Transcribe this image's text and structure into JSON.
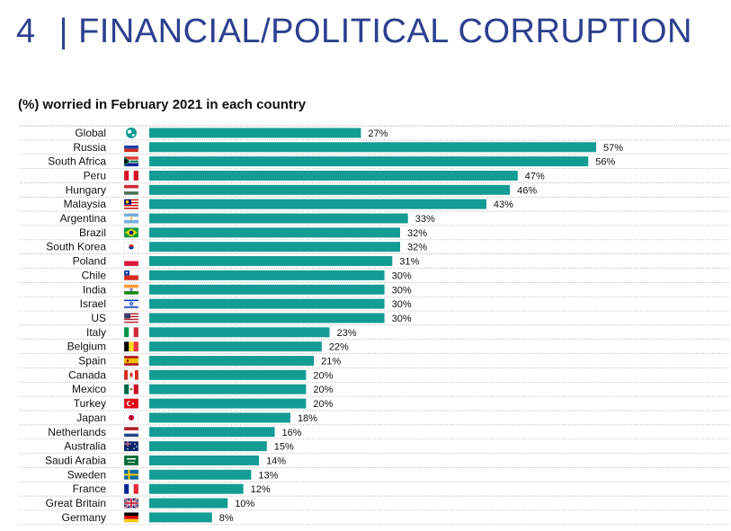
{
  "header": {
    "number": "4",
    "title": "| FINANCIAL/POLITICAL CORRUPTION"
  },
  "chart_data": {
    "type": "bar",
    "orientation": "horizontal",
    "title": "(%) worried in February 2021 in each country",
    "bar_color": "#139c94",
    "value_suffix": "%",
    "xlim": [
      0,
      60
    ],
    "categories": [
      "Global",
      "Russia",
      "South Africa",
      "Peru",
      "Hungary",
      "Malaysia",
      "Argentina",
      "Brazil",
      "South Korea",
      "Poland",
      "Chile",
      "India",
      "Israel",
      "US",
      "Italy",
      "Belgium",
      "Spain",
      "Canada",
      "Mexico",
      "Turkey",
      "Japan",
      "Netherlands",
      "Australia",
      "Saudi Arabia",
      "Sweden",
      "France",
      "Great Britain",
      "Germany"
    ],
    "values": [
      27,
      57,
      56,
      47,
      46,
      43,
      33,
      32,
      32,
      31,
      30,
      30,
      30,
      30,
      23,
      22,
      21,
      20,
      20,
      20,
      18,
      16,
      15,
      14,
      13,
      12,
      10,
      8
    ],
    "flag_icons": [
      "globe-icon",
      "flag-russia-icon",
      "flag-south-africa-icon",
      "flag-peru-icon",
      "flag-hungary-icon",
      "flag-malaysia-icon",
      "flag-argentina-icon",
      "flag-brazil-icon",
      "flag-south-korea-icon",
      "flag-poland-icon",
      "flag-chile-icon",
      "flag-india-icon",
      "flag-israel-icon",
      "flag-us-icon",
      "flag-italy-icon",
      "flag-belgium-icon",
      "flag-spain-icon",
      "flag-canada-icon",
      "flag-mexico-icon",
      "flag-turkey-icon",
      "flag-japan-icon",
      "flag-netherlands-icon",
      "flag-australia-icon",
      "flag-saudi-arabia-icon",
      "flag-sweden-icon",
      "flag-france-icon",
      "flag-great-britain-icon",
      "flag-germany-icon"
    ]
  }
}
